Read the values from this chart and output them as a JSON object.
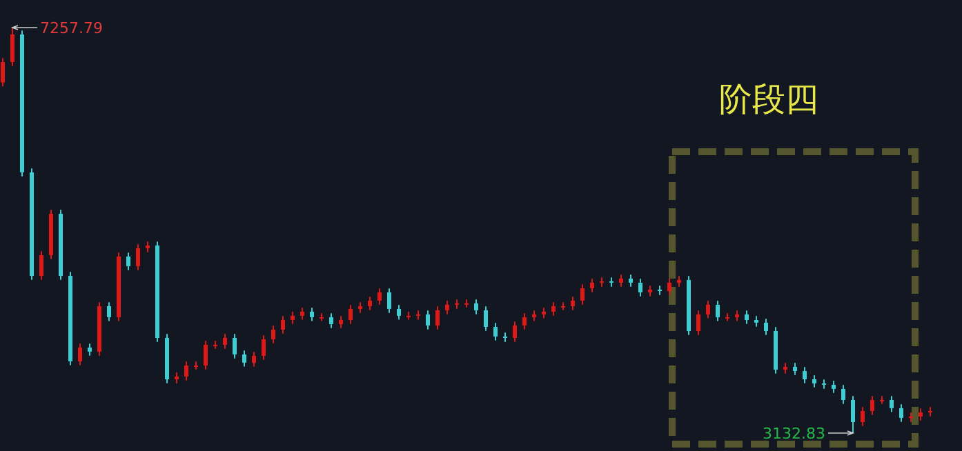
{
  "chart_data": {
    "type": "candlestick",
    "title": "阶段四",
    "categories": [
      null,
      null,
      null,
      null,
      null,
      null,
      null,
      null,
      null,
      null,
      null,
      null,
      null,
      null,
      null,
      null,
      null,
      null,
      null,
      null,
      null,
      null,
      null,
      null,
      null,
      null,
      null,
      null,
      null,
      null,
      null,
      null,
      null,
      null,
      null,
      null,
      null,
      null,
      null,
      null,
      null,
      null,
      null,
      null,
      null,
      null,
      null,
      null,
      null,
      null,
      null,
      null,
      null,
      null,
      null,
      null,
      null,
      null,
      null,
      null,
      null,
      null,
      null,
      null,
      null,
      null,
      null,
      null,
      null,
      null,
      null,
      null,
      null,
      null,
      null,
      null,
      null,
      null,
      null,
      null,
      null,
      null,
      null,
      null,
      null,
      null,
      null,
      null,
      null,
      null,
      null,
      null,
      null,
      null,
      null,
      null,
      null
    ],
    "ohlc": [
      [
        6700,
        6947,
        6660,
        6907
      ],
      [
        6907,
        7257.79,
        6867,
        7188
      ],
      [
        7188,
        7228,
        5745,
        5785
      ],
      [
        5785,
        5825,
        4692,
        4732
      ],
      [
        4732,
        4983,
        4692,
        4943
      ],
      [
        4943,
        5404,
        4903,
        5364
      ],
      [
        5364,
        5404,
        4692,
        4732
      ],
      [
        4732,
        4772,
        3823,
        3863
      ],
      [
        3863,
        4043,
        3823,
        4003
      ],
      [
        4003,
        4043,
        3921,
        3961
      ],
      [
        3961,
        4464,
        3921,
        4424
      ],
      [
        4424,
        4464,
        4272,
        4312
      ],
      [
        4312,
        4969,
        4272,
        4929
      ],
      [
        4929,
        4969,
        4791,
        4831
      ],
      [
        4831,
        5053,
        4791,
        5013
      ],
      [
        5013,
        5081,
        4973,
        5041
      ],
      [
        5041,
        5081,
        4061,
        4101
      ],
      [
        4101,
        4141,
        3640,
        3680
      ],
      [
        3680,
        3748,
        3640,
        3708
      ],
      [
        3708,
        3860,
        3668,
        3820
      ],
      [
        3820,
        3860,
        3780,
        3820
      ],
      [
        3820,
        4071,
        3780,
        4031
      ],
      [
        4031,
        4071,
        3991,
        4031
      ],
      [
        4031,
        4141,
        3991,
        4101
      ],
      [
        4101,
        4141,
        3893,
        3933
      ],
      [
        3933,
        3973,
        3809,
        3849
      ],
      [
        3849,
        3959,
        3809,
        3919
      ],
      [
        3919,
        4127,
        3879,
        4087
      ],
      [
        4087,
        4225,
        4047,
        4185
      ],
      [
        4185,
        4323,
        4145,
        4283
      ],
      [
        4283,
        4366,
        4243,
        4326
      ],
      [
        4326,
        4408,
        4286,
        4368
      ],
      [
        4368,
        4408,
        4272,
        4312
      ],
      [
        4312,
        4352,
        4272,
        4312
      ],
      [
        4312,
        4352,
        4201,
        4241
      ],
      [
        4241,
        4323,
        4201,
        4283
      ],
      [
        4283,
        4436,
        4243,
        4396
      ],
      [
        4396,
        4464,
        4356,
        4424
      ],
      [
        4424,
        4520,
        4384,
        4480
      ],
      [
        4480,
        4604,
        4440,
        4564
      ],
      [
        4564,
        4604,
        4356,
        4396
      ],
      [
        4396,
        4436,
        4286,
        4326
      ],
      [
        4326,
        4366,
        4286,
        4326
      ],
      [
        4326,
        4380,
        4286,
        4340
      ],
      [
        4340,
        4380,
        4187,
        4227
      ],
      [
        4227,
        4422,
        4187,
        4382
      ],
      [
        4382,
        4478,
        4342,
        4438
      ],
      [
        4438,
        4492,
        4398,
        4452
      ],
      [
        4452,
        4492,
        4412,
        4452
      ],
      [
        4452,
        4492,
        4342,
        4382
      ],
      [
        4382,
        4422,
        4173,
        4213
      ],
      [
        4213,
        4253,
        4075,
        4115
      ],
      [
        4115,
        4155,
        4061,
        4101
      ],
      [
        4101,
        4267,
        4061,
        4227
      ],
      [
        4227,
        4352,
        4187,
        4312
      ],
      [
        4312,
        4380,
        4272,
        4340
      ],
      [
        4340,
        4408,
        4300,
        4368
      ],
      [
        4368,
        4464,
        4328,
        4424
      ],
      [
        4424,
        4464,
        4384,
        4424
      ],
      [
        4424,
        4520,
        4384,
        4480
      ],
      [
        4480,
        4646,
        4440,
        4606
      ],
      [
        4606,
        4702,
        4566,
        4662
      ],
      [
        4662,
        4716,
        4622,
        4676
      ],
      [
        4676,
        4716,
        4622,
        4662
      ],
      [
        4662,
        4744,
        4622,
        4704
      ],
      [
        4704,
        4744,
        4622,
        4662
      ],
      [
        4662,
        4702,
        4524,
        4564
      ],
      [
        4564,
        4632,
        4524,
        4592
      ],
      [
        4592,
        4632,
        4538,
        4578
      ],
      [
        4578,
        4702,
        4538,
        4662
      ],
      [
        4662,
        4730,
        4622,
        4690
      ],
      [
        4690,
        4730,
        4131,
        4171
      ],
      [
        4171,
        4380,
        4131,
        4340
      ],
      [
        4340,
        4478,
        4300,
        4438
      ],
      [
        4438,
        4478,
        4272,
        4312
      ],
      [
        4312,
        4352,
        4272,
        4312
      ],
      [
        4312,
        4380,
        4272,
        4340
      ],
      [
        4340,
        4380,
        4243,
        4283
      ],
      [
        4283,
        4323,
        4215,
        4255
      ],
      [
        4255,
        4295,
        4131,
        4171
      ],
      [
        4171,
        4211,
        3738,
        3778
      ],
      [
        3778,
        3846,
        3738,
        3806
      ],
      [
        3806,
        3846,
        3724,
        3764
      ],
      [
        3764,
        3804,
        3640,
        3680
      ],
      [
        3680,
        3720,
        3598,
        3638
      ],
      [
        3638,
        3678,
        3584,
        3624
      ],
      [
        3624,
        3664,
        3542,
        3582
      ],
      [
        3582,
        3622,
        3430,
        3470
      ],
      [
        3470,
        3510,
        3132.83,
        3245
      ],
      [
        3245,
        3397,
        3205,
        3357
      ],
      [
        3357,
        3510,
        3317,
        3470
      ],
      [
        3470,
        3510,
        3430,
        3470
      ],
      [
        3470,
        3510,
        3346,
        3386
      ],
      [
        3386,
        3426,
        3247,
        3287
      ],
      [
        3287,
        3341,
        3247,
        3301
      ],
      [
        3301,
        3383,
        3261,
        3343
      ],
      [
        3343,
        3397,
        3303,
        3357
      ]
    ],
    "annotations": [
      "7257.79",
      "3132.83"
    ]
  }
}
